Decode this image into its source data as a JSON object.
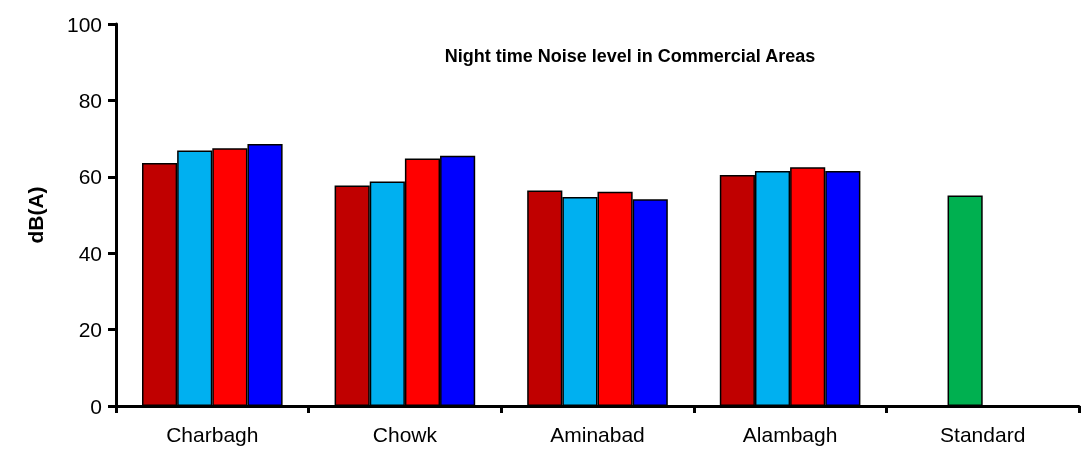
{
  "chart_data": {
    "type": "bar",
    "title": "Night time Noise level in Commercial Areas",
    "ylabel": "dB(A)",
    "categories": [
      "Charbagh",
      "Chowk",
      "Aminabad",
      "Alambagh",
      "Standard"
    ],
    "series": [
      {
        "color": "#c00000",
        "values": [
          63.6,
          57.7,
          56.4,
          60.5,
          null
        ]
      },
      {
        "color": "#00b0f0",
        "colors": [
          "#00b0f0",
          "#00b0f0",
          "#00b0f0",
          "#00b0f0",
          "#00b050"
        ],
        "values": [
          66.9,
          58.8,
          54.7,
          61.5,
          55.1
        ]
      },
      {
        "color": "#ff0000",
        "values": [
          67.5,
          64.8,
          56.1,
          62.5,
          null
        ]
      },
      {
        "color": "#0000ff",
        "values": [
          68.6,
          65.5,
          54.1,
          61.5,
          null
        ]
      }
    ],
    "ylim": [
      0,
      100
    ],
    "yticks": [
      0,
      20,
      40,
      60,
      80,
      100
    ],
    "grid": false
  }
}
